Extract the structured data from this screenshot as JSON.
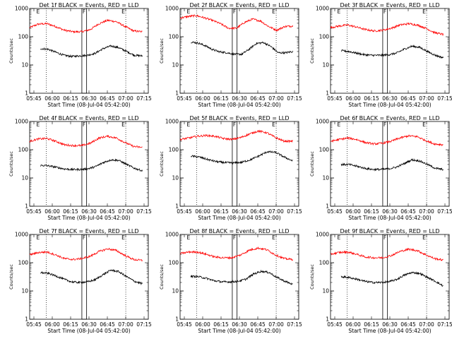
{
  "chart_data": {
    "type": "line",
    "layout": "3x3 grid",
    "y_scale": "log",
    "ylim": [
      1,
      1000
    ],
    "y_ticks": [
      "1",
      "10",
      "100",
      "1000"
    ],
    "x_tick_labels": [
      "05:45",
      "06:00",
      "06:15",
      "06:30",
      "06:45",
      "07:00",
      "07:15"
    ],
    "ylabel": "Counts/sec",
    "xlabel": "Start Time (08-Jul-04 05:42:00)",
    "colors": {
      "events": "#000000",
      "lld": "#ff0000"
    },
    "markers": [
      {
        "label": "E",
        "style": "dotted"
      },
      {
        "label": "F",
        "style": "box"
      },
      {
        "label": "E",
        "style": "dotted"
      }
    ],
    "panels": [
      {
        "title": "Det 1f BLACK = Events, RED = LLD",
        "series": [
          {
            "values": [
              210,
              280,
              290,
              230,
              170,
              150,
              150,
              180,
              290,
              380,
              340,
              230,
              160,
              150
            ]
          },
          {
            "values": [
              38,
              36,
              28,
              22,
              20,
              21,
              22,
              26,
              38,
              47,
              41,
              30,
              22,
              21
            ]
          }
        ]
      },
      {
        "title": "Det 2f BLACK = Events, RED = LLD",
        "series": [
          {
            "values": [
              460,
              520,
              560,
              470,
              380,
              290,
              200,
              200,
              320,
              420,
              360,
              230,
              170,
              230,
              240
            ]
          },
          {
            "values": [
              65,
              60,
              48,
              35,
              29,
              27,
              24,
              24,
              36,
              58,
              62,
              45,
              27,
              27,
              30
            ]
          }
        ]
      },
      {
        "title": "Det 3f BLACK = Events, RED = LLD",
        "series": [
          {
            "values": [
              210,
              240,
              260,
              220,
              180,
              160,
              170,
              200,
              260,
              290,
              260,
              200,
              140,
              120
            ]
          },
          {
            "values": [
              32,
              30,
              26,
              23,
              22,
              22,
              23,
              26,
              36,
              46,
              42,
              30,
              22,
              18
            ]
          }
        ]
      },
      {
        "title": "Det 4f BLACK = Events, RED = LLD",
        "series": [
          {
            "values": [
              200,
              240,
              250,
              200,
              150,
              140,
              140,
              170,
              260,
              300,
              260,
              180,
              130,
              120
            ]
          },
          {
            "values": [
              28,
              27,
              24,
              21,
              20,
              20,
              21,
              25,
              35,
              44,
              42,
              30,
              22,
              18
            ]
          }
        ]
      },
      {
        "title": "Det 5f BLACK = Events, RED = LLD",
        "series": [
          {
            "values": [
              230,
              260,
              300,
              320,
              300,
              250,
              230,
              270,
              360,
              460,
              400,
              270,
              200,
              200
            ]
          },
          {
            "values": [
              60,
              55,
              45,
              38,
              35,
              34,
              36,
              44,
              60,
              85,
              80,
              55,
              40
            ]
          }
        ]
      },
      {
        "title": "Det 6f BLACK = Events, RED = LLD",
        "series": [
          {
            "values": [
              200,
              230,
              260,
              230,
              180,
              160,
              170,
              200,
              260,
              310,
              290,
              210,
              160,
              150
            ]
          },
          {
            "values": [
              30,
              30,
              26,
              22,
              20,
              20,
              21,
              24,
              32,
              44,
              40,
              30,
              22,
              20
            ]
          }
        ]
      },
      {
        "title": "Det 7f BLACK = Events, RED = LLD",
        "series": [
          {
            "values": [
              190,
              230,
              240,
              190,
              140,
              130,
              140,
              170,
              250,
              310,
              270,
              180,
              130,
              120
            ]
          },
          {
            "values": [
              45,
              42,
              34,
              26,
              21,
              20,
              21,
              25,
              38,
              55,
              48,
              32,
              22,
              18
            ]
          }
        ]
      },
      {
        "title": "Det 8f BLACK = Events, RED = LLD",
        "series": [
          {
            "values": [
              210,
              240,
              240,
              200,
              160,
              150,
              150,
              190,
              280,
              330,
              290,
              190,
              140,
              130
            ]
          },
          {
            "values": [
              33,
              32,
              28,
              23,
              21,
              21,
              22,
              26,
              40,
              50,
              45,
              30,
              22,
              17
            ]
          }
        ]
      },
      {
        "title": "Det 9f BLACK = Events, RED = LLD",
        "series": [
          {
            "values": [
              200,
              230,
              240,
              200,
              160,
              150,
              150,
              180,
              250,
              300,
              270,
              190,
              140,
              125
            ]
          },
          {
            "values": [
              32,
              30,
              26,
              22,
              20,
              20,
              21,
              25,
              36,
              45,
              42,
              30,
              22,
              15
            ]
          }
        ]
      }
    ]
  }
}
